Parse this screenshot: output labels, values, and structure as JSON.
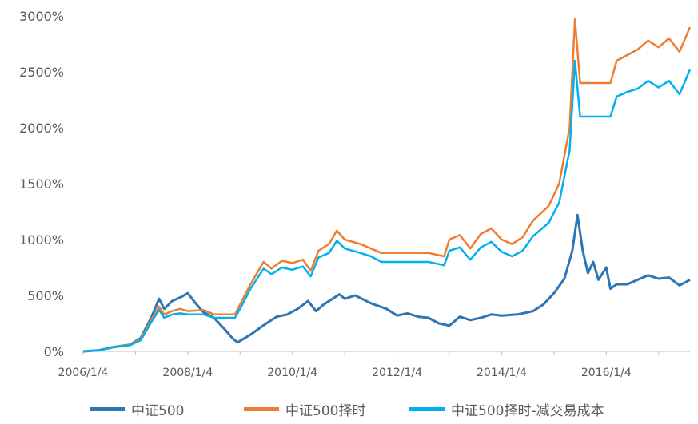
{
  "chart_data": {
    "type": "line",
    "title": "",
    "xlabel": "",
    "ylabel": "",
    "ylim": [
      0,
      3000
    ],
    "yticks": [
      "0%",
      "500%",
      "1000%",
      "1500%",
      "2000%",
      "2500%",
      "3000%"
    ],
    "xticks": [
      "2006/1/4",
      "2008/1/4",
      "2010/1/4",
      "2012/1/4",
      "2014/1/4",
      "2016/1/4"
    ],
    "xrange": [
      2006.0,
      2017.6
    ],
    "grid": false,
    "legend_position": "bottom",
    "series": [
      {
        "name": "中证500",
        "color": "#2E75B6",
        "points": [
          [
            2006.0,
            0
          ],
          [
            2006.3,
            10
          ],
          [
            2006.6,
            40
          ],
          [
            2006.9,
            60
          ],
          [
            2007.1,
            120
          ],
          [
            2007.3,
            300
          ],
          [
            2007.45,
            470
          ],
          [
            2007.55,
            380
          ],
          [
            2007.7,
            450
          ],
          [
            2007.85,
            480
          ],
          [
            2008.0,
            520
          ],
          [
            2008.15,
            430
          ],
          [
            2008.3,
            350
          ],
          [
            2008.5,
            300
          ],
          [
            2008.7,
            200
          ],
          [
            2008.85,
            120
          ],
          [
            2008.95,
            80
          ],
          [
            2009.2,
            150
          ],
          [
            2009.5,
            250
          ],
          [
            2009.7,
            310
          ],
          [
            2009.9,
            330
          ],
          [
            2010.1,
            380
          ],
          [
            2010.3,
            450
          ],
          [
            2010.45,
            360
          ],
          [
            2010.6,
            420
          ],
          [
            2010.8,
            480
          ],
          [
            2010.9,
            510
          ],
          [
            2011.0,
            470
          ],
          [
            2011.2,
            500
          ],
          [
            2011.5,
            430
          ],
          [
            2011.8,
            380
          ],
          [
            2012.0,
            320
          ],
          [
            2012.2,
            340
          ],
          [
            2012.4,
            310
          ],
          [
            2012.6,
            300
          ],
          [
            2012.8,
            250
          ],
          [
            2013.0,
            230
          ],
          [
            2013.2,
            310
          ],
          [
            2013.4,
            280
          ],
          [
            2013.6,
            300
          ],
          [
            2013.8,
            330
          ],
          [
            2014.0,
            320
          ],
          [
            2014.3,
            330
          ],
          [
            2014.6,
            360
          ],
          [
            2014.8,
            420
          ],
          [
            2015.0,
            520
          ],
          [
            2015.2,
            650
          ],
          [
            2015.35,
            900
          ],
          [
            2015.45,
            1220
          ],
          [
            2015.55,
            900
          ],
          [
            2015.65,
            700
          ],
          [
            2015.75,
            800
          ],
          [
            2015.85,
            640
          ],
          [
            2016.0,
            750
          ],
          [
            2016.08,
            560
          ],
          [
            2016.2,
            600
          ],
          [
            2016.4,
            600
          ],
          [
            2016.6,
            640
          ],
          [
            2016.8,
            680
          ],
          [
            2017.0,
            650
          ],
          [
            2017.2,
            660
          ],
          [
            2017.4,
            590
          ],
          [
            2017.6,
            640
          ]
        ]
      },
      {
        "name": "中证500择时",
        "color": "#ED7D31",
        "points": [
          [
            2006.0,
            0
          ],
          [
            2006.3,
            10
          ],
          [
            2006.6,
            40
          ],
          [
            2006.9,
            60
          ],
          [
            2007.1,
            110
          ],
          [
            2007.3,
            280
          ],
          [
            2007.45,
            400
          ],
          [
            2007.55,
            330
          ],
          [
            2007.7,
            360
          ],
          [
            2007.85,
            380
          ],
          [
            2008.0,
            360
          ],
          [
            2008.3,
            370
          ],
          [
            2008.5,
            330
          ],
          [
            2008.9,
            330
          ],
          [
            2009.0,
            420
          ],
          [
            2009.2,
            600
          ],
          [
            2009.45,
            800
          ],
          [
            2009.6,
            740
          ],
          [
            2009.8,
            810
          ],
          [
            2010.0,
            790
          ],
          [
            2010.2,
            820
          ],
          [
            2010.35,
            720
          ],
          [
            2010.5,
            900
          ],
          [
            2010.7,
            960
          ],
          [
            2010.85,
            1080
          ],
          [
            2011.0,
            1000
          ],
          [
            2011.3,
            960
          ],
          [
            2011.5,
            920
          ],
          [
            2011.7,
            880
          ],
          [
            2012.0,
            880
          ],
          [
            2012.6,
            880
          ],
          [
            2012.9,
            850
          ],
          [
            2013.0,
            1000
          ],
          [
            2013.2,
            1040
          ],
          [
            2013.4,
            920
          ],
          [
            2013.6,
            1050
          ],
          [
            2013.8,
            1100
          ],
          [
            2014.0,
            1000
          ],
          [
            2014.2,
            960
          ],
          [
            2014.4,
            1020
          ],
          [
            2014.6,
            1170
          ],
          [
            2014.9,
            1300
          ],
          [
            2015.1,
            1500
          ],
          [
            2015.3,
            2000
          ],
          [
            2015.4,
            2970
          ],
          [
            2015.5,
            2400
          ],
          [
            2016.0,
            2400
          ],
          [
            2016.08,
            2400
          ],
          [
            2016.2,
            2600
          ],
          [
            2016.4,
            2650
          ],
          [
            2016.6,
            2700
          ],
          [
            2016.8,
            2780
          ],
          [
            2017.0,
            2720
          ],
          [
            2017.2,
            2800
          ],
          [
            2017.4,
            2680
          ],
          [
            2017.6,
            2900
          ]
        ]
      },
      {
        "name": "中证500择时-减交易成本",
        "color": "#00B0F0",
        "points": [
          [
            2006.0,
            0
          ],
          [
            2006.3,
            10
          ],
          [
            2006.6,
            38
          ],
          [
            2006.9,
            55
          ],
          [
            2007.1,
            100
          ],
          [
            2007.3,
            260
          ],
          [
            2007.45,
            370
          ],
          [
            2007.55,
            300
          ],
          [
            2007.7,
            330
          ],
          [
            2007.85,
            340
          ],
          [
            2008.0,
            330
          ],
          [
            2008.3,
            330
          ],
          [
            2008.5,
            300
          ],
          [
            2008.9,
            300
          ],
          [
            2009.0,
            380
          ],
          [
            2009.2,
            560
          ],
          [
            2009.45,
            740
          ],
          [
            2009.6,
            690
          ],
          [
            2009.8,
            750
          ],
          [
            2010.0,
            730
          ],
          [
            2010.2,
            760
          ],
          [
            2010.35,
            670
          ],
          [
            2010.5,
            840
          ],
          [
            2010.7,
            880
          ],
          [
            2010.85,
            990
          ],
          [
            2011.0,
            920
          ],
          [
            2011.3,
            880
          ],
          [
            2011.5,
            850
          ],
          [
            2011.7,
            800
          ],
          [
            2012.0,
            800
          ],
          [
            2012.6,
            800
          ],
          [
            2012.9,
            770
          ],
          [
            2013.0,
            900
          ],
          [
            2013.2,
            930
          ],
          [
            2013.4,
            820
          ],
          [
            2013.6,
            930
          ],
          [
            2013.8,
            980
          ],
          [
            2014.0,
            890
          ],
          [
            2014.2,
            850
          ],
          [
            2014.4,
            900
          ],
          [
            2014.6,
            1030
          ],
          [
            2014.9,
            1150
          ],
          [
            2015.1,
            1330
          ],
          [
            2015.3,
            1800
          ],
          [
            2015.4,
            2600
          ],
          [
            2015.5,
            2100
          ],
          [
            2016.0,
            2100
          ],
          [
            2016.08,
            2100
          ],
          [
            2016.2,
            2280
          ],
          [
            2016.4,
            2320
          ],
          [
            2016.6,
            2350
          ],
          [
            2016.8,
            2420
          ],
          [
            2017.0,
            2360
          ],
          [
            2017.2,
            2420
          ],
          [
            2017.4,
            2300
          ],
          [
            2017.6,
            2520
          ]
        ]
      }
    ]
  }
}
